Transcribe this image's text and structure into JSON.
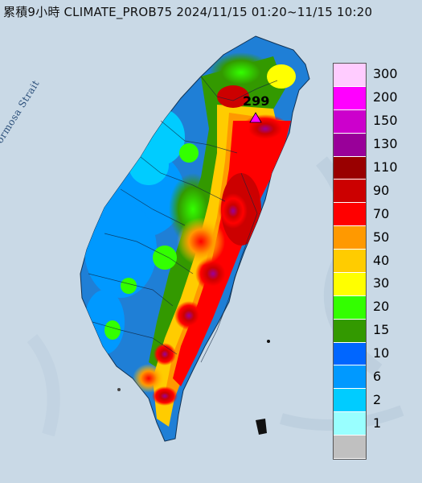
{
  "title": "累積9小時 CLIMATE_PROB75 2024/11/15 01:20~11/15 10:20",
  "sea_label": "Formosa Strait",
  "max_marker": {
    "value_label": "299",
    "symbol": "triangle-marker"
  },
  "legend": [
    {
      "label": "300",
      "color": "#ffccff"
    },
    {
      "label": "200",
      "color": "#ff00ff"
    },
    {
      "label": "150",
      "color": "#cc00cc"
    },
    {
      "label": "130",
      "color": "#990099"
    },
    {
      "label": "110",
      "color": "#990000"
    },
    {
      "label": "90",
      "color": "#cc0000"
    },
    {
      "label": "70",
      "color": "#ff0000"
    },
    {
      "label": "50",
      "color": "#ff9900"
    },
    {
      "label": "40",
      "color": "#ffcc00"
    },
    {
      "label": "30",
      "color": "#ffff00"
    },
    {
      "label": "20",
      "color": "#33ff00"
    },
    {
      "label": "15",
      "color": "#339900"
    },
    {
      "label": "10",
      "color": "#0066ff"
    },
    {
      "label": "6",
      "color": "#0099ff"
    },
    {
      "label": "2",
      "color": "#00ccff"
    },
    {
      "label": "1",
      "color": "#99ffff"
    },
    {
      "label": "",
      "color": "#c0c0c0"
    }
  ],
  "colors": {
    "sea": "#c9d9e6",
    "land_base": "#1f7fd6"
  }
}
